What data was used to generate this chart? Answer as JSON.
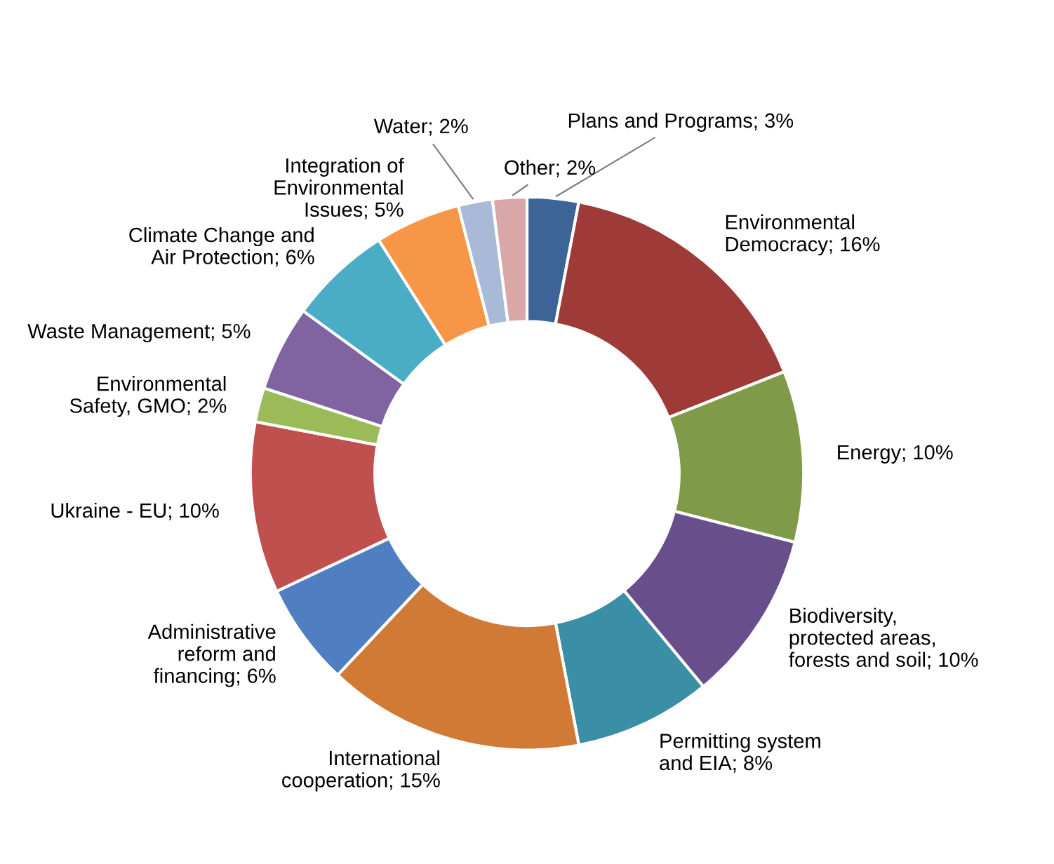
{
  "chart_data": {
    "type": "donut",
    "categories": [
      "Plans and Programs",
      "Environmental\nDemocracy",
      "Energy",
      "Biodiversity,\nprotected areas,\nforests and soil",
      "Permitting system\nand EIA",
      "International\ncooperation",
      "Administrative\nreform and\nfinancing",
      "Ukraine - EU",
      "Environmental\nSafety, GMO",
      "Waste Management",
      "Climate Change and\nAir Protection",
      "Integration of\nEnvironmental\nIssues",
      "Water",
      "Other"
    ],
    "values": [
      3,
      16,
      10,
      10,
      8,
      15,
      6,
      10,
      2,
      5,
      6,
      5,
      2,
      2
    ],
    "value_labels": [
      "3%",
      "16%",
      "10%",
      "10%",
      "8%",
      "15%",
      "6%",
      "10%",
      "2%",
      "5%",
      "6%",
      "5%",
      "2%",
      "2%"
    ],
    "colors": [
      "#3c6496",
      "#9e3a38",
      "#7f9a48",
      "#684f8b",
      "#3a8ea5",
      "#d07a35",
      "#4f7fc0",
      "#c0504d",
      "#9bbb59",
      "#8064a2",
      "#4bacc6",
      "#f79646",
      "#a9b9d8",
      "#d9a7a7"
    ],
    "legend": false
  }
}
